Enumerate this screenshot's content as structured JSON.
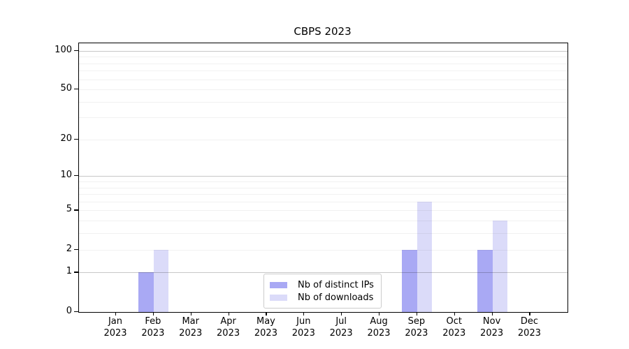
{
  "figure": {
    "title": "CBPS 2023",
    "background": "#ffffff"
  },
  "chart_data": {
    "type": "bar",
    "title": "CBPS 2023",
    "x_tick_labels": [
      [
        "Jan",
        "2023"
      ],
      [
        "Feb",
        "2023"
      ],
      [
        "Mar",
        "2023"
      ],
      [
        "Apr",
        "2023"
      ],
      [
        "May",
        "2023"
      ],
      [
        "Jun",
        "2023"
      ],
      [
        "Jul",
        "2023"
      ],
      [
        "Aug",
        "2023"
      ],
      [
        "Sep",
        "2023"
      ],
      [
        "Oct",
        "2023"
      ],
      [
        "Nov",
        "2023"
      ],
      [
        "Dec",
        "2023"
      ]
    ],
    "y_axis": {
      "scale": "log10(1+x)",
      "ticks": [
        0,
        1,
        2,
        5,
        10,
        20,
        50,
        100
      ],
      "major_gridlines": [
        1,
        10,
        100
      ],
      "minor_gridlines": [
        2,
        3,
        4,
        5,
        6,
        7,
        8,
        9,
        20,
        30,
        40,
        50,
        60,
        70,
        80,
        90
      ],
      "ylim": [
        0,
        112
      ]
    },
    "series": [
      {
        "name": "Nb of distinct IPs",
        "color": "#a9a9f4",
        "values": [
          0,
          1,
          0,
          0,
          0,
          0,
          0,
          0,
          2,
          0,
          2,
          0
        ]
      },
      {
        "name": "Nb of downloads",
        "color": "#dbdbf9",
        "values": [
          0,
          2,
          0,
          0,
          0,
          0,
          0,
          0,
          6,
          0,
          4,
          0
        ]
      }
    ],
    "legend": {
      "position": "lower center",
      "entries": [
        "Nb of distinct IPs",
        "Nb of downloads"
      ]
    }
  }
}
